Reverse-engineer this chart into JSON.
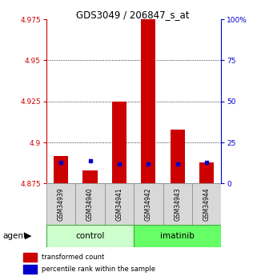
{
  "title": "GDS3049 / 206847_s_at",
  "samples": [
    "GSM34939",
    "GSM34940",
    "GSM34941",
    "GSM34942",
    "GSM34943",
    "GSM34944"
  ],
  "groups": [
    "control",
    "control",
    "control",
    "imatinib",
    "imatinib",
    "imatinib"
  ],
  "red_values": [
    4.892,
    4.883,
    4.925,
    4.975,
    4.908,
    4.888
  ],
  "blue_values": [
    4.888,
    4.889,
    4.887,
    4.887,
    4.887,
    4.888
  ],
  "ylim_left": [
    4.875,
    4.975
  ],
  "yticks_left": [
    4.875,
    4.9,
    4.925,
    4.95,
    4.975
  ],
  "yticks_right": [
    0,
    25,
    50,
    75,
    100
  ],
  "baseline": 4.875,
  "left_color": "#cc0000",
  "blue_color": "#0000cc",
  "right_axis_color": "#0000cc",
  "left_axis_color": "#cc0000",
  "control_color": "#ccffcc",
  "imatinib_color": "#66ff66",
  "bar_width": 0.5,
  "legend_red": "transformed count",
  "legend_blue": "percentile rank within the sample"
}
